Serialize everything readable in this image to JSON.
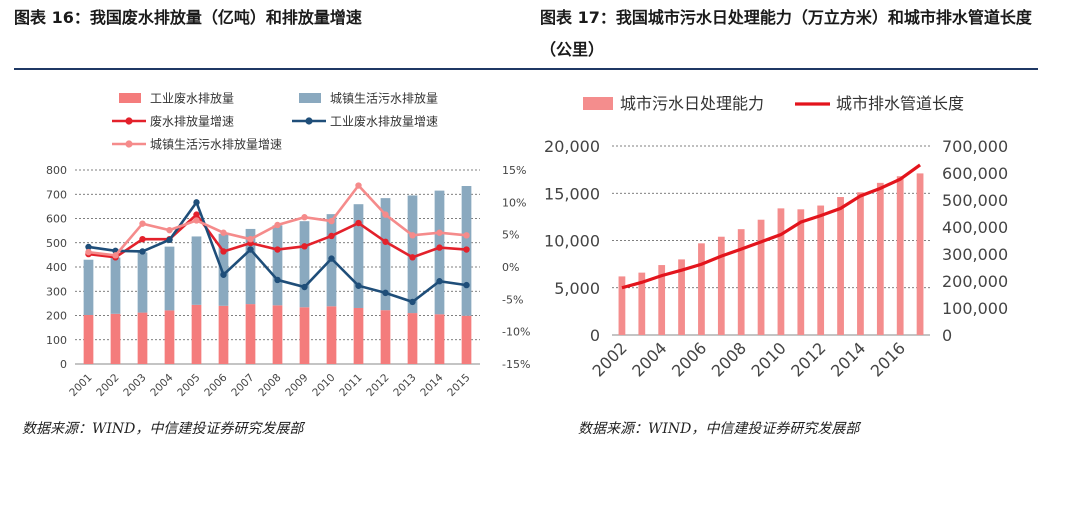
{
  "figures": [
    {
      "title": "图表 16：我国废水排放量（亿吨）和排放量增速",
      "source": "数据来源：WIND，中信建投证券研究发展部"
    },
    {
      "title": "图表  17：我国城市污水日处理能力（万立方米）和城市排水管道长度（公里）",
      "source": "数据来源：WIND，中信建投证券研究发展部"
    }
  ],
  "chart_data": [
    {
      "type": "bar",
      "stacked": true,
      "categories": [
        "2001",
        "2002",
        "2003",
        "2004",
        "2005",
        "2006",
        "2007",
        "2008",
        "2009",
        "2010",
        "2011",
        "2012",
        "2013",
        "2014",
        "2015"
      ],
      "series": [
        {
          "name": "工业废水排放量",
          "kind": "bar",
          "axis": "left",
          "color": "#f47c7c",
          "values": [
            202,
            207,
            212,
            221,
            244,
            240,
            247,
            242,
            234,
            238,
            231,
            222,
            210,
            205,
            199
          ]
        },
        {
          "name": "城镇生活污水排放量",
          "kind": "bar",
          "axis": "left",
          "color": "#8aa9bf",
          "values": [
            228,
            232,
            248,
            263,
            282,
            297,
            310,
            330,
            355,
            380,
            428,
            462,
            485,
            510,
            535
          ]
        },
        {
          "name": "废水排放量增速",
          "kind": "line",
          "axis": "right",
          "color": "#e3212b",
          "values": [
            2.0,
            1.5,
            4.3,
            4.3,
            8.1,
            2.4,
            3.7,
            2.7,
            3.2,
            4.8,
            6.8,
            3.9,
            1.5,
            3.0,
            2.7
          ]
        },
        {
          "name": "工业废水排放量增速",
          "kind": "line",
          "axis": "right",
          "color": "#1f4e79",
          "values": [
            3.1,
            2.5,
            2.4,
            4.2,
            10.0,
            -1.2,
            2.7,
            -2.0,
            -3.1,
            1.3,
            -2.9,
            -4.0,
            -5.4,
            -2.2,
            -2.8
          ]
        },
        {
          "name": "城镇生活污水排放量增速",
          "kind": "line",
          "axis": "right",
          "color": "#f58b8b",
          "values": [
            2.3,
            1.8,
            6.7,
            5.7,
            7.2,
            5.3,
            4.3,
            6.5,
            7.7,
            7.1,
            12.6,
            8.1,
            4.9,
            5.3,
            4.9
          ]
        }
      ],
      "y_left": {
        "range": [
          0,
          800
        ],
        "ticks": [
          "0",
          "100",
          "200",
          "300",
          "400",
          "500",
          "600",
          "700",
          "800"
        ]
      },
      "y_right": {
        "range": [
          -15,
          15
        ],
        "ticks": [
          "-15%",
          "-10%",
          "-5%",
          "0%",
          "5%",
          "10%",
          "15%"
        ]
      },
      "legend_position": "top",
      "grid": "horizontal dashed"
    },
    {
      "type": "bar",
      "categories": [
        "2002",
        "2003",
        "2004",
        "2005",
        "2006",
        "2007",
        "2008",
        "2009",
        "2010",
        "2011",
        "2012",
        "2013",
        "2014",
        "2015",
        "2016",
        "2017"
      ],
      "x_tick_labels": [
        "2002",
        "2004",
        "2006",
        "2008",
        "2010",
        "2012",
        "2014",
        "2016"
      ],
      "series": [
        {
          "name": "城市污水日处理能力",
          "kind": "bar",
          "axis": "left",
          "color": "#f48d8d",
          "values": [
            6200,
            6600,
            7400,
            8000,
            9700,
            10400,
            11200,
            12200,
            13400,
            13300,
            13700,
            14600,
            15100,
            16100,
            16800,
            17100
          ]
        },
        {
          "name": "城市排水管道长度",
          "kind": "line",
          "axis": "right",
          "color": "#e3141c",
          "values": [
            175000,
            195000,
            220000,
            240000,
            262000,
            292000,
            318000,
            345000,
            372000,
            418000,
            442000,
            469000,
            515000,
            543000,
            577000,
            630000
          ]
        }
      ],
      "y_left": {
        "range": [
          0,
          20000
        ],
        "ticks": [
          "0",
          "5,000",
          "10,000",
          "15,000",
          "20,000"
        ]
      },
      "y_right": {
        "range": [
          0,
          700000
        ],
        "ticks": [
          "0",
          "100,000",
          "200,000",
          "300,000",
          "400,000",
          "500,000",
          "600,000",
          "700,000"
        ]
      },
      "legend_position": "top",
      "grid": "horizontal dashed"
    }
  ]
}
